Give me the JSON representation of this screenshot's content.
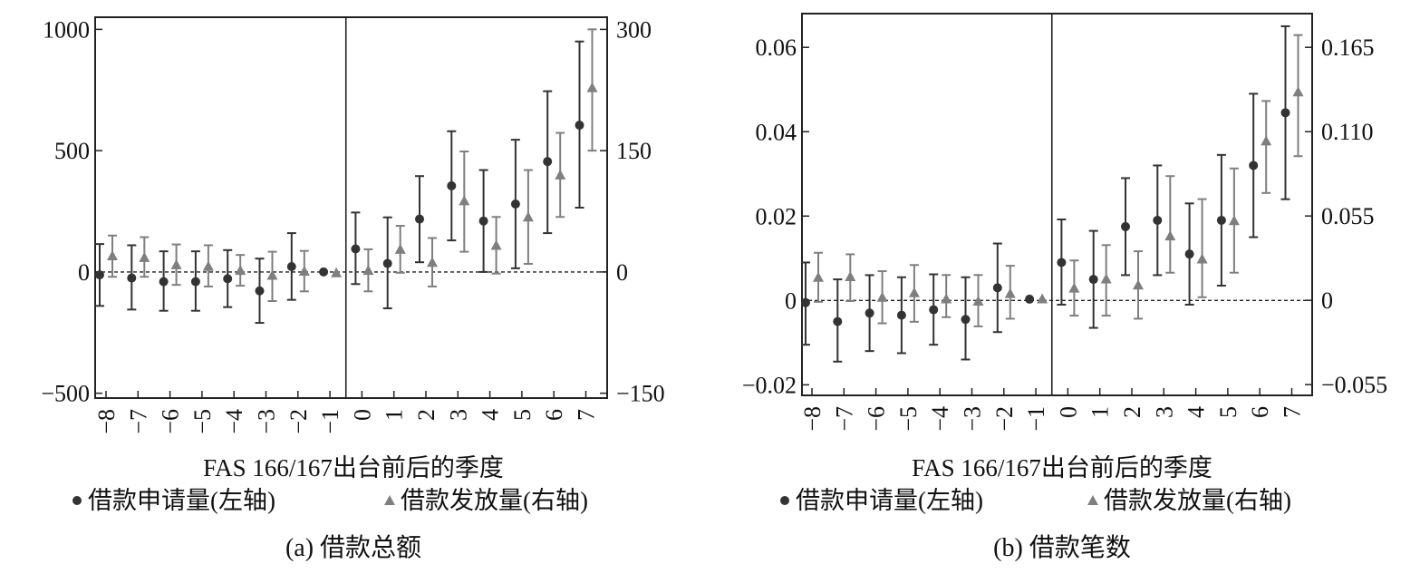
{
  "chart_data": [
    {
      "type": "scatter",
      "caption": "(a) 借款总额",
      "xlabel": "FAS 166/167出台前后的季度",
      "categories": [
        "−8",
        "−7",
        "−6",
        "−5",
        "−4",
        "−3",
        "−2",
        "−1",
        "0",
        "1",
        "2",
        "3",
        "4",
        "5",
        "6",
        "7"
      ],
      "x": [
        -8,
        -7,
        -6,
        -5,
        -4,
        -3,
        -2,
        -1,
        0,
        1,
        2,
        3,
        4,
        5,
        6,
        7
      ],
      "event_x": -0.5,
      "y_left": {
        "lim": [
          -520,
          1050
        ],
        "ticks": [
          1000,
          500,
          0,
          -500
        ],
        "tick_labels": [
          "1000",
          "500",
          "0",
          "−500"
        ]
      },
      "y_right": {
        "lim": [
          -156,
          315
        ],
        "ticks": [
          300,
          150,
          0,
          -150
        ],
        "tick_labels": [
          "300",
          "150",
          "0",
          "−150"
        ]
      },
      "series": [
        {
          "name": "借款申请量(左轴)",
          "axis": "left",
          "marker": "circle",
          "color": "#333333",
          "values": [
            -12,
            -25,
            -40,
            -40,
            -28,
            -78,
            22,
            0,
            95,
            35,
            218,
            355,
            210,
            280,
            455,
            605
          ],
          "lower": [
            -140,
            -155,
            -160,
            -160,
            -145,
            -210,
            -115,
            0,
            -50,
            -150,
            40,
            130,
            0,
            15,
            160,
            265
          ],
          "upper": [
            115,
            110,
            85,
            85,
            90,
            55,
            160,
            0,
            245,
            225,
            395,
            580,
            420,
            545,
            745,
            950
          ]
        },
        {
          "name": "借款发放量(右轴)",
          "axis": "right",
          "marker": "triangle",
          "color": "#7f7f7f",
          "values": [
            20,
            18,
            9,
            7,
            2,
            -4,
            1,
            -1,
            2,
            28,
            12,
            88,
            33,
            68,
            120,
            228
          ],
          "lower": [
            -6,
            -6,
            -16,
            -18,
            -17,
            -36,
            -24,
            0,
            -24,
            -1,
            -18,
            25,
            -2,
            10,
            68,
            150
          ],
          "upper": [
            45,
            43,
            34,
            33,
            21,
            25,
            26,
            0,
            28,
            57,
            42,
            149,
            68,
            126,
            172,
            300
          ]
        }
      ]
    },
    {
      "type": "scatter",
      "caption": "(b) 借款笔数",
      "xlabel": "FAS 166/167出台前后的季度",
      "categories": [
        "−8",
        "−7",
        "−6",
        "−5",
        "−4",
        "−3",
        "−2",
        "−1",
        "0",
        "1",
        "2",
        "3",
        "4",
        "5",
        "6",
        "7"
      ],
      "x": [
        -8,
        -7,
        -6,
        -5,
        -4,
        -3,
        -2,
        -1,
        0,
        1,
        2,
        3,
        4,
        5,
        6,
        7
      ],
      "event_x": -0.5,
      "y_left": {
        "lim": [
          -0.0225,
          0.068
        ],
        "ticks": [
          0.06,
          0.04,
          0.02,
          0,
          -0.02
        ],
        "tick_labels": [
          "0.06",
          "0.04",
          "0.02",
          "0",
          "−0.02"
        ]
      },
      "y_right": {
        "lim": [
          -0.062,
          0.187
        ],
        "ticks": [
          0.165,
          0.11,
          0.055,
          0,
          -0.055
        ],
        "tick_labels": [
          "0.165",
          "0.110",
          "0.055",
          "0",
          "−0.055"
        ]
      },
      "series": [
        {
          "name": "借款申请量(左轴)",
          "axis": "left",
          "marker": "circle",
          "color": "#333333",
          "values": [
            -0.0005,
            -0.005,
            -0.003,
            -0.0035,
            -0.0022,
            -0.0045,
            0.003,
            0.0003,
            0.009,
            0.005,
            0.0175,
            0.019,
            0.011,
            0.019,
            0.032,
            0.0445
          ],
          "lower": [
            -0.0105,
            -0.0145,
            -0.012,
            -0.0125,
            -0.0105,
            -0.014,
            -0.0075,
            0.0003,
            -0.001,
            -0.0065,
            0.006,
            0.006,
            -0.001,
            0.0035,
            0.015,
            0.024
          ],
          "upper": [
            0.009,
            0.005,
            0.006,
            0.0055,
            0.0062,
            0.0055,
            0.0135,
            0.0003,
            0.0192,
            0.0165,
            0.029,
            0.032,
            0.023,
            0.0345,
            0.049,
            0.065
          ]
        },
        {
          "name": "借款发放量(右轴)",
          "axis": "right",
          "marker": "triangle",
          "color": "#7f7f7f",
          "values": [
            0.015,
            0.0155,
            0.002,
            0.005,
            0.001,
            -0.0005,
            0.0045,
            0.001,
            0.008,
            0.014,
            0.01,
            0.042,
            0.027,
            0.052,
            0.104,
            0.136
          ],
          "lower": [
            -0.001,
            -0.0005,
            -0.015,
            -0.014,
            -0.011,
            -0.017,
            -0.012,
            0.001,
            -0.01,
            -0.01,
            -0.012,
            0.018,
            0.002,
            0.018,
            0.07,
            0.094
          ],
          "upper": [
            0.031,
            0.03,
            0.019,
            0.023,
            0.0165,
            0.0165,
            0.0225,
            0.001,
            0.026,
            0.036,
            0.032,
            0.081,
            0.066,
            0.086,
            0.13,
            0.173
          ]
        }
      ]
    }
  ]
}
